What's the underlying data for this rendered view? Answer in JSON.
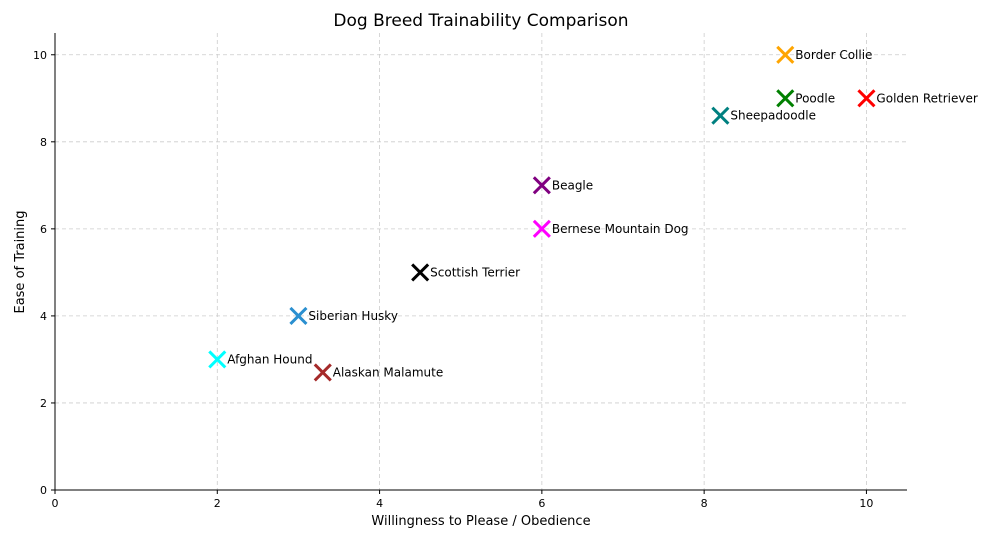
{
  "chart_data": {
    "type": "scatter",
    "title": "Dog Breed Trainability Comparison",
    "xlabel": "Willingness to Please / Obedience",
    "ylabel": "Ease of Training",
    "xlim": [
      0,
      10.5
    ],
    "ylim": [
      0,
      10.5
    ],
    "xticks": [
      0,
      2,
      4,
      6,
      8,
      10
    ],
    "yticks": [
      0,
      2,
      4,
      6,
      8,
      10
    ],
    "grid": true,
    "marker": "x",
    "points": [
      {
        "label": "Border Collie",
        "x": 9,
        "y": 10,
        "color": "#FFA500"
      },
      {
        "label": "Poodle",
        "x": 9,
        "y": 9,
        "color": "#008000"
      },
      {
        "label": "Golden Retriever",
        "x": 10,
        "y": 9,
        "color": "#FF0000"
      },
      {
        "label": "Sheepadoodle",
        "x": 8.2,
        "y": 8.6,
        "color": "#008080"
      },
      {
        "label": "Beagle",
        "x": 6,
        "y": 7,
        "color": "#800080"
      },
      {
        "label": "Bernese Mountain Dog",
        "x": 6,
        "y": 6,
        "color": "#FF00FF"
      },
      {
        "label": "Scottish Terrier",
        "x": 4.5,
        "y": 5,
        "color": "#000000"
      },
      {
        "label": "Siberian Husky",
        "x": 3,
        "y": 4,
        "color": "#2A8FD0"
      },
      {
        "label": "Afghan Hound",
        "x": 2,
        "y": 3,
        "color": "#00FFFF"
      },
      {
        "label": "Alaskan Malamute",
        "x": 3.3,
        "y": 2.7,
        "color": "#A52A2A"
      }
    ]
  }
}
